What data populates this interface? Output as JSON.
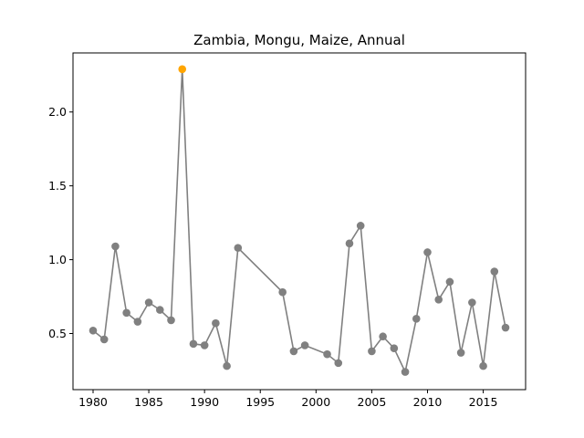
{
  "chart_data": {
    "type": "line",
    "title": "Zambia, Mongu, Maize, Annual",
    "xlabel": "",
    "ylabel": "",
    "xlim": [
      1978.2,
      2018.8
    ],
    "ylim": [
      0.12,
      2.4
    ],
    "xticks": [
      1980,
      1985,
      1990,
      1995,
      2000,
      2005,
      2010,
      2015
    ],
    "yticks": [
      0.5,
      1.0,
      1.5,
      2.0
    ],
    "xtick_labels": [
      "1980",
      "1985",
      "1990",
      "1995",
      "2000",
      "2005",
      "2010",
      "2015"
    ],
    "ytick_labels": [
      "0.5",
      "1.0",
      "1.5",
      "2.0"
    ],
    "grid": false,
    "series": [
      {
        "color": "#808080",
        "highlight_color": "#ffa500",
        "highlight_index": 8,
        "points": [
          {
            "x": 1980,
            "y": 0.52
          },
          {
            "x": 1981,
            "y": 0.46
          },
          {
            "x": 1982,
            "y": 1.09
          },
          {
            "x": 1983,
            "y": 0.64
          },
          {
            "x": 1984,
            "y": 0.58
          },
          {
            "x": 1985,
            "y": 0.71
          },
          {
            "x": 1986,
            "y": 0.66
          },
          {
            "x": 1987,
            "y": 0.59
          },
          {
            "x": 1988,
            "y": 2.29
          },
          {
            "x": 1989,
            "y": 0.43
          },
          {
            "x": 1990,
            "y": 0.42
          },
          {
            "x": 1991,
            "y": 0.57
          },
          {
            "x": 1992,
            "y": 0.28
          },
          {
            "x": 1993,
            "y": 1.08
          },
          {
            "x": 1997,
            "y": 0.78
          },
          {
            "x": 1998,
            "y": 0.38
          },
          {
            "x": 1999,
            "y": 0.42
          },
          {
            "x": 2001,
            "y": 0.36
          },
          {
            "x": 2002,
            "y": 0.3
          },
          {
            "x": 2003,
            "y": 1.11
          },
          {
            "x": 2004,
            "y": 1.23
          },
          {
            "x": 2005,
            "y": 0.38
          },
          {
            "x": 2006,
            "y": 0.48
          },
          {
            "x": 2007,
            "y": 0.4
          },
          {
            "x": 2008,
            "y": 0.24
          },
          {
            "x": 2009,
            "y": 0.6
          },
          {
            "x": 2010,
            "y": 1.05
          },
          {
            "x": 2011,
            "y": 0.73
          },
          {
            "x": 2012,
            "y": 0.85
          },
          {
            "x": 2013,
            "y": 0.37
          },
          {
            "x": 2014,
            "y": 0.71
          },
          {
            "x": 2015,
            "y": 0.28
          },
          {
            "x": 2016,
            "y": 0.92
          },
          {
            "x": 2017,
            "y": 0.54
          }
        ]
      }
    ]
  }
}
